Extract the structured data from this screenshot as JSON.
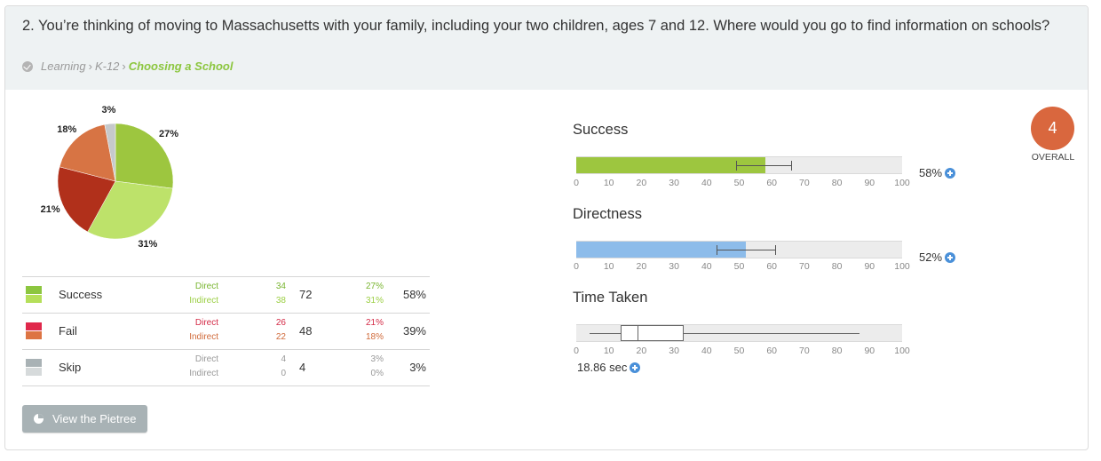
{
  "question": {
    "text": "2. You’re thinking of moving to Massachusetts with your family, including your two children, ages 7 and 12. Where would you go to find information on schools?",
    "breadcrumb": [
      "Learning",
      "K-12",
      "Choosing a School"
    ],
    "separator": "›"
  },
  "chart_data": [
    {
      "type": "pie",
      "title": "",
      "labels": [
        "Success Direct",
        "Success Indirect",
        "Fail Direct",
        "Fail Indirect",
        "Skip Direct",
        "Skip Indirect"
      ],
      "values": [
        27,
        31,
        21,
        18,
        3,
        0
      ],
      "value_labels": [
        "27%",
        "31%",
        "21%",
        "18%",
        "3%",
        "0%"
      ],
      "colors": [
        "#9dc63f",
        "#bde26a",
        "#b1301b",
        "#d77444",
        "#c6c9cb",
        "#e0e3e4"
      ]
    },
    {
      "type": "table",
      "rows": [
        {
          "label": "Success",
          "direct_label": "Direct",
          "indirect_label": "Indirect",
          "direct": "34",
          "indirect": "38",
          "total": "72",
          "direct_pct": "27%",
          "indirect_pct": "31%",
          "total_pct": "58%",
          "colors": [
            "#8cc63f",
            "#b5df5a"
          ],
          "text_colors": [
            "#79b530",
            "#9ccf45"
          ]
        },
        {
          "label": "Fail",
          "direct_label": "Direct",
          "indirect_label": "Indirect",
          "direct": "26",
          "indirect": "22",
          "total": "48",
          "direct_pct": "21%",
          "indirect_pct": "18%",
          "total_pct": "39%",
          "colors": [
            "#e0284b",
            "#dd7443"
          ],
          "text_colors": [
            "#d42a46",
            "#d06a3a"
          ]
        },
        {
          "label": "Skip",
          "direct_label": "Direct",
          "indirect_label": "Indirect",
          "direct": "4",
          "indirect": "0",
          "total": "4",
          "direct_pct": "3%",
          "indirect_pct": "0%",
          "total_pct": "3%",
          "colors": [
            "#a9b2b5",
            "#d6dadb"
          ],
          "text_colors": [
            "#999999",
            "#999999"
          ]
        }
      ]
    },
    {
      "type": "bar",
      "title": "Success",
      "value": 58,
      "value_label": "58%",
      "error_range": [
        49,
        66
      ],
      "xlim": [
        0,
        100
      ],
      "ticks": [
        "0",
        "10",
        "20",
        "30",
        "40",
        "50",
        "60",
        "70",
        "80",
        "90",
        "100"
      ],
      "color": "#9dc63f"
    },
    {
      "type": "bar",
      "title": "Directness",
      "value": 52,
      "value_label": "52%",
      "error_range": [
        43,
        61
      ],
      "xlim": [
        0,
        100
      ],
      "ticks": [
        "0",
        "10",
        "20",
        "30",
        "40",
        "50",
        "60",
        "70",
        "80",
        "90",
        "100"
      ],
      "color": "#8dbcea"
    },
    {
      "type": "boxplot",
      "title": "Time Taken",
      "min": 4,
      "q1": 13.5,
      "median": 18.86,
      "q3": 33,
      "max": 87,
      "value_label": "18.86 sec",
      "xlim": [
        0,
        100
      ],
      "ticks": [
        "0",
        "10",
        "20",
        "30",
        "40",
        "50",
        "60",
        "70",
        "80",
        "90",
        "100"
      ]
    }
  ],
  "overall": {
    "score": "4",
    "label": "OVERALL",
    "color": "#d9673e"
  },
  "buttons": {
    "pietree": "View the Pietree"
  }
}
